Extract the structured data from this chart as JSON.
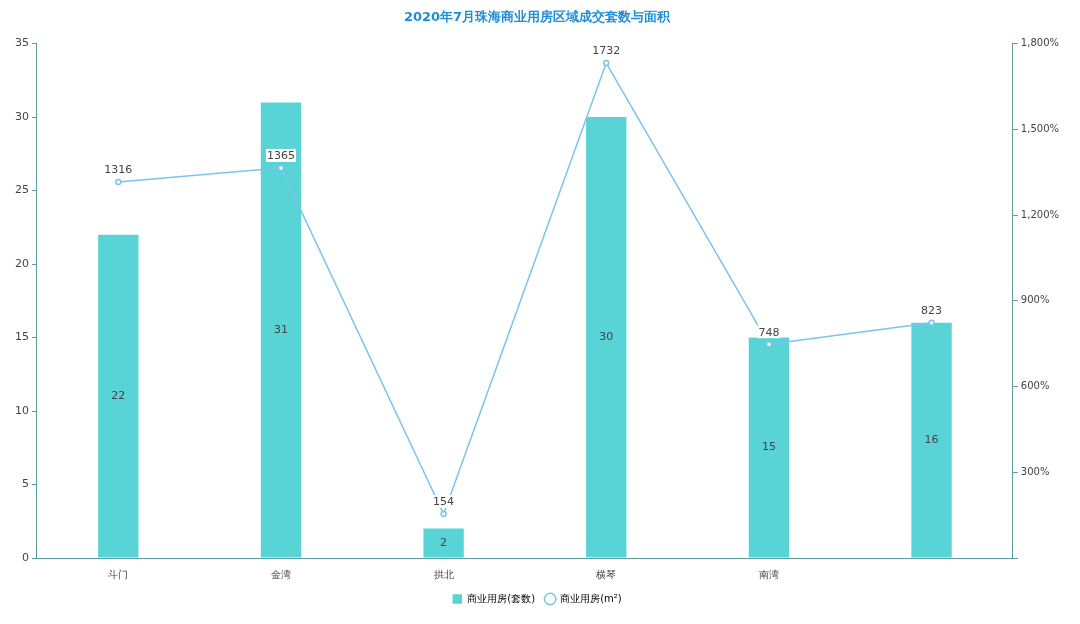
{
  "chart_data": {
    "type": "bar",
    "title": "2020年7月珠海商业用房区域成交套数与面积",
    "categories": [
      "斗门",
      "金湾",
      "拱北",
      "横琴",
      "南湾",
      null
    ],
    "series": [
      {
        "name": "商业用房(套数)",
        "color": "#58d3d6",
        "values": [
          22,
          31,
          2,
          30,
          15,
          16
        ]
      },
      {
        "name": "商业用房(m²)",
        "type": "line",
        "axis": "y2",
        "color": "#7cc3ee",
        "marker": "circle",
        "values": [
          1316,
          1365,
          154,
          1732,
          748,
          823
        ]
      }
    ],
    "ylim": [
      0,
      35
    ],
    "yticks": [
      0,
      5,
      10,
      15,
      20,
      25,
      30,
      35
    ],
    "y2lim": [
      0,
      1800
    ],
    "y2ticks": [
      {
        "value": 0,
        "label": null
      },
      {
        "value": 300,
        "label": "300%"
      },
      {
        "value": 600,
        "label": "600%"
      },
      {
        "value": 900,
        "label": "900%"
      },
      {
        "value": 1200,
        "label": "1,200%"
      },
      {
        "value": 1500,
        "label": "1,500%"
      },
      {
        "value": 1800,
        "label": "1,800%"
      }
    ],
    "data_labels": true,
    "grid": false,
    "legend": "bottom"
  }
}
